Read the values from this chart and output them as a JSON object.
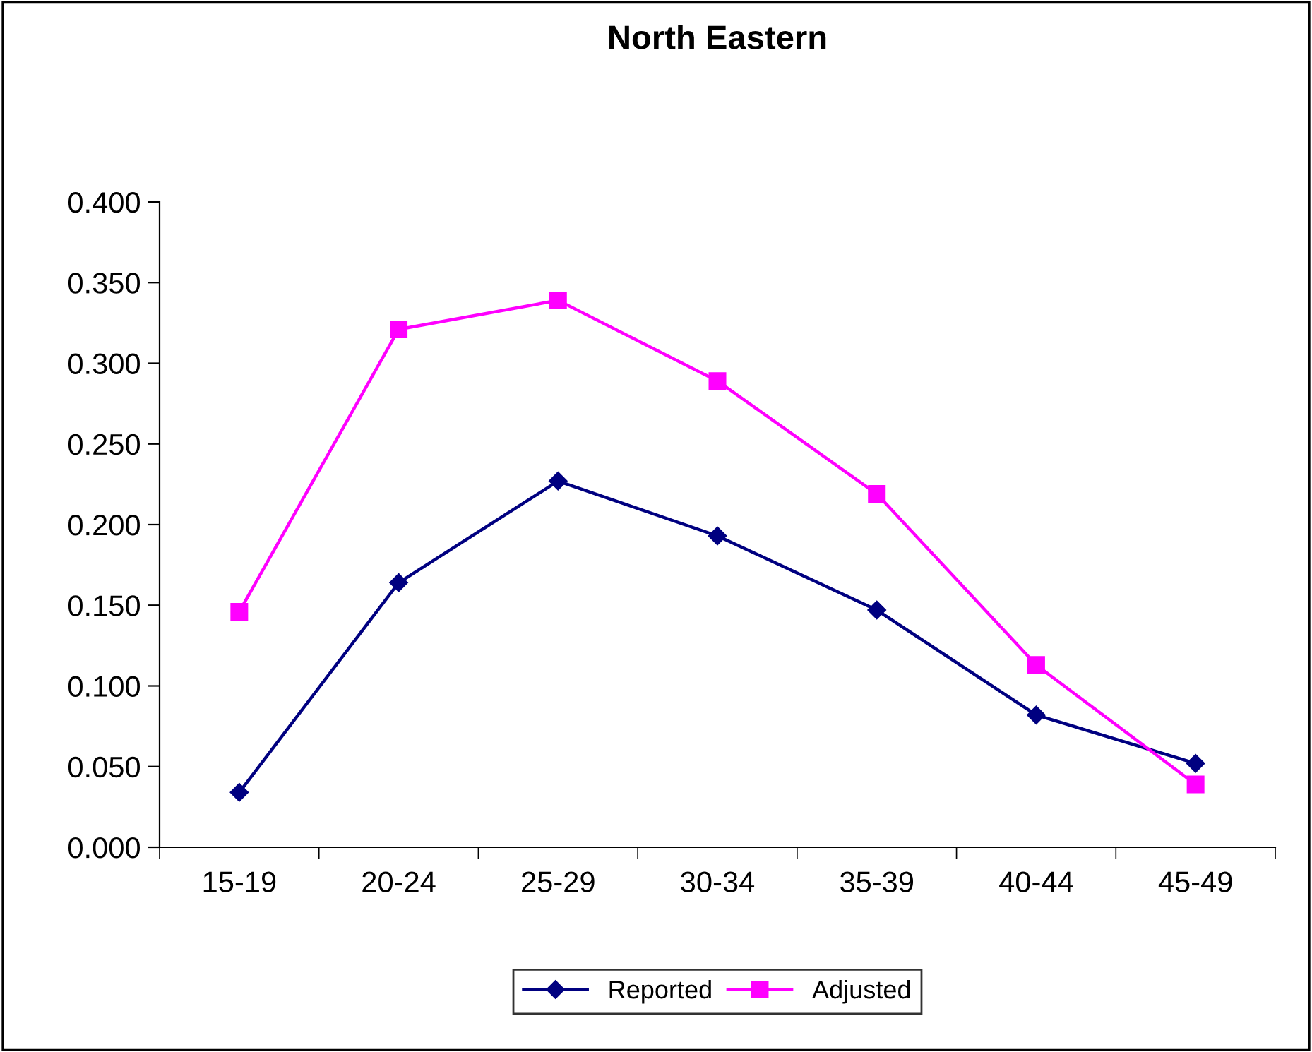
{
  "chart_data": {
    "type": "line",
    "title": "North Eastern",
    "categories": [
      "15-19",
      "20-24",
      "25-29",
      "30-34",
      "35-39",
      "40-44",
      "45-49"
    ],
    "series": [
      {
        "name": "Reported",
        "color": "#000080",
        "marker": "diamond",
        "values": [
          0.034,
          0.164,
          0.227,
          0.193,
          0.147,
          0.082,
          0.052
        ]
      },
      {
        "name": "Adjusted",
        "color": "#ff00ff",
        "marker": "square",
        "values": [
          0.146,
          0.321,
          0.339,
          0.289,
          0.219,
          0.113,
          0.039
        ]
      }
    ],
    "ylim": [
      0,
      0.4
    ],
    "yticks": [
      {
        "value": 0,
        "label": "0.000"
      },
      {
        "value": 0.05,
        "label": "0.050"
      },
      {
        "value": 0.1,
        "label": "0.100"
      },
      {
        "value": 0.15,
        "label": "0.150"
      },
      {
        "value": 0.2,
        "label": "0.200"
      },
      {
        "value": 0.25,
        "label": "0.250"
      },
      {
        "value": 0.3,
        "label": "0.300"
      },
      {
        "value": 0.35,
        "label": "0.350"
      },
      {
        "value": 0.4,
        "label": "0.400"
      }
    ],
    "grid": false,
    "legend": "bottom",
    "line_style": "solid"
  }
}
